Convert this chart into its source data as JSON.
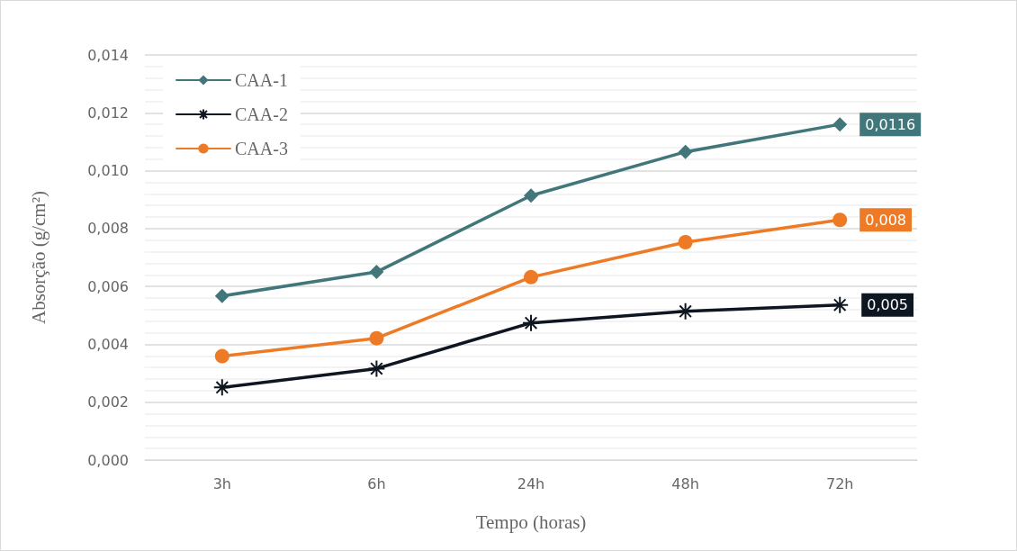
{
  "chart_data": {
    "type": "line",
    "xlabel": "Tempo (horas)",
    "ylabel": "Absorção (g/cm²)",
    "categories": [
      "3h",
      "6h",
      "24h",
      "48h",
      "72h"
    ],
    "series": [
      {
        "name": "CAA-1",
        "color": "#41777a",
        "marker": "diamond",
        "values": [
          0.00567,
          0.0065,
          0.00914,
          0.01065,
          0.0116
        ],
        "value_labels": [
          null,
          null,
          null,
          null,
          "0,0116"
        ]
      },
      {
        "name": "CAA-2",
        "color": "#0e1621",
        "marker": "cross",
        "values": [
          0.00251,
          0.00316,
          0.00474,
          0.00514,
          0.00536
        ],
        "value_labels": [
          null,
          null,
          null,
          null,
          "0,005"
        ]
      },
      {
        "name": "CAA-3",
        "color": "#ee7a26",
        "marker": "circle",
        "values": [
          0.00359,
          0.00421,
          0.00632,
          0.00753,
          0.0083
        ],
        "value_labels": [
          null,
          null,
          null,
          null,
          "0,008"
        ]
      }
    ],
    "ylim": [
      0,
      0.014
    ],
    "yticks": [
      {
        "value": 0,
        "label": "0,000"
      },
      {
        "value": 0.002,
        "label": "0,002"
      },
      {
        "value": 0.004,
        "label": "0,004"
      },
      {
        "value": 0.006,
        "label": "0,006"
      },
      {
        "value": 0.008,
        "label": "0,008"
      },
      {
        "value": 0.01,
        "label": "0,010"
      },
      {
        "value": 0.012,
        "label": "0,012"
      },
      {
        "value": 0.014,
        "label": "0,014"
      }
    ],
    "grid": "y",
    "legend": "top left",
    "line_style": "solid"
  }
}
